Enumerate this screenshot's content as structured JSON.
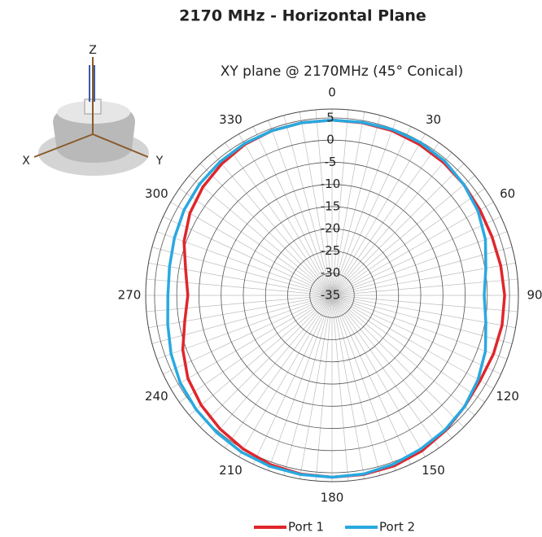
{
  "axes_icon": {
    "z": "Z",
    "x": "X",
    "y": "Y"
  },
  "chart_data": {
    "type": "polar",
    "title": "2170 MHz - Horizontal Plane",
    "subtitle": "XY plane @ 2170MHz (45° Conical)",
    "theta": [
      0,
      10,
      20,
      30,
      40,
      50,
      60,
      70,
      80,
      90,
      100,
      110,
      120,
      130,
      140,
      150,
      160,
      170,
      180,
      190,
      200,
      210,
      220,
      230,
      240,
      250,
      260,
      270,
      280,
      290,
      300,
      310,
      320,
      330,
      340,
      350
    ],
    "theta_ticks": [
      0,
      30,
      60,
      90,
      120,
      150,
      180,
      210,
      240,
      270,
      300,
      330
    ],
    "rlim": [
      -35,
      7
    ],
    "rticks": [
      5,
      0,
      -5,
      -10,
      -15,
      -20,
      -25,
      -30,
      -35
    ],
    "direction": "clockwise",
    "zero_location": "top",
    "grid": true,
    "legend": "bottom",
    "series": [
      {
        "name": "Port 1",
        "color": "#e0262b",
        "values": [
          4.5,
          4.5,
          4.5,
          4.3,
          4.1,
          3.8,
          3.5,
          3.4,
          3.6,
          3.9,
          3.9,
          3.7,
          3.5,
          4,
          4.8,
          5.5,
          5.9,
          6,
          6,
          5.9,
          5.6,
          5,
          4.3,
          3.5,
          2.5,
          0.8,
          -1.3,
          -2.5,
          -1.5,
          0.5,
          2,
          3,
          3.7,
          4.3,
          4.5,
          4.5
        ]
      },
      {
        "name": "Port 2",
        "color": "#29a9e0",
        "values": [
          4.5,
          4.6,
          4.8,
          4.8,
          4.5,
          3.8,
          3,
          1.8,
          0.2,
          -0.7,
          0.2,
          1.8,
          3,
          4,
          4.6,
          5,
          5.5,
          5.9,
          6,
          6,
          6,
          5.8,
          5.4,
          5,
          4.5,
          3.6,
          2.6,
          2,
          2.2,
          2.8,
          3.5,
          4,
          4.3,
          4.5,
          4.5,
          4.5
        ]
      }
    ]
  }
}
